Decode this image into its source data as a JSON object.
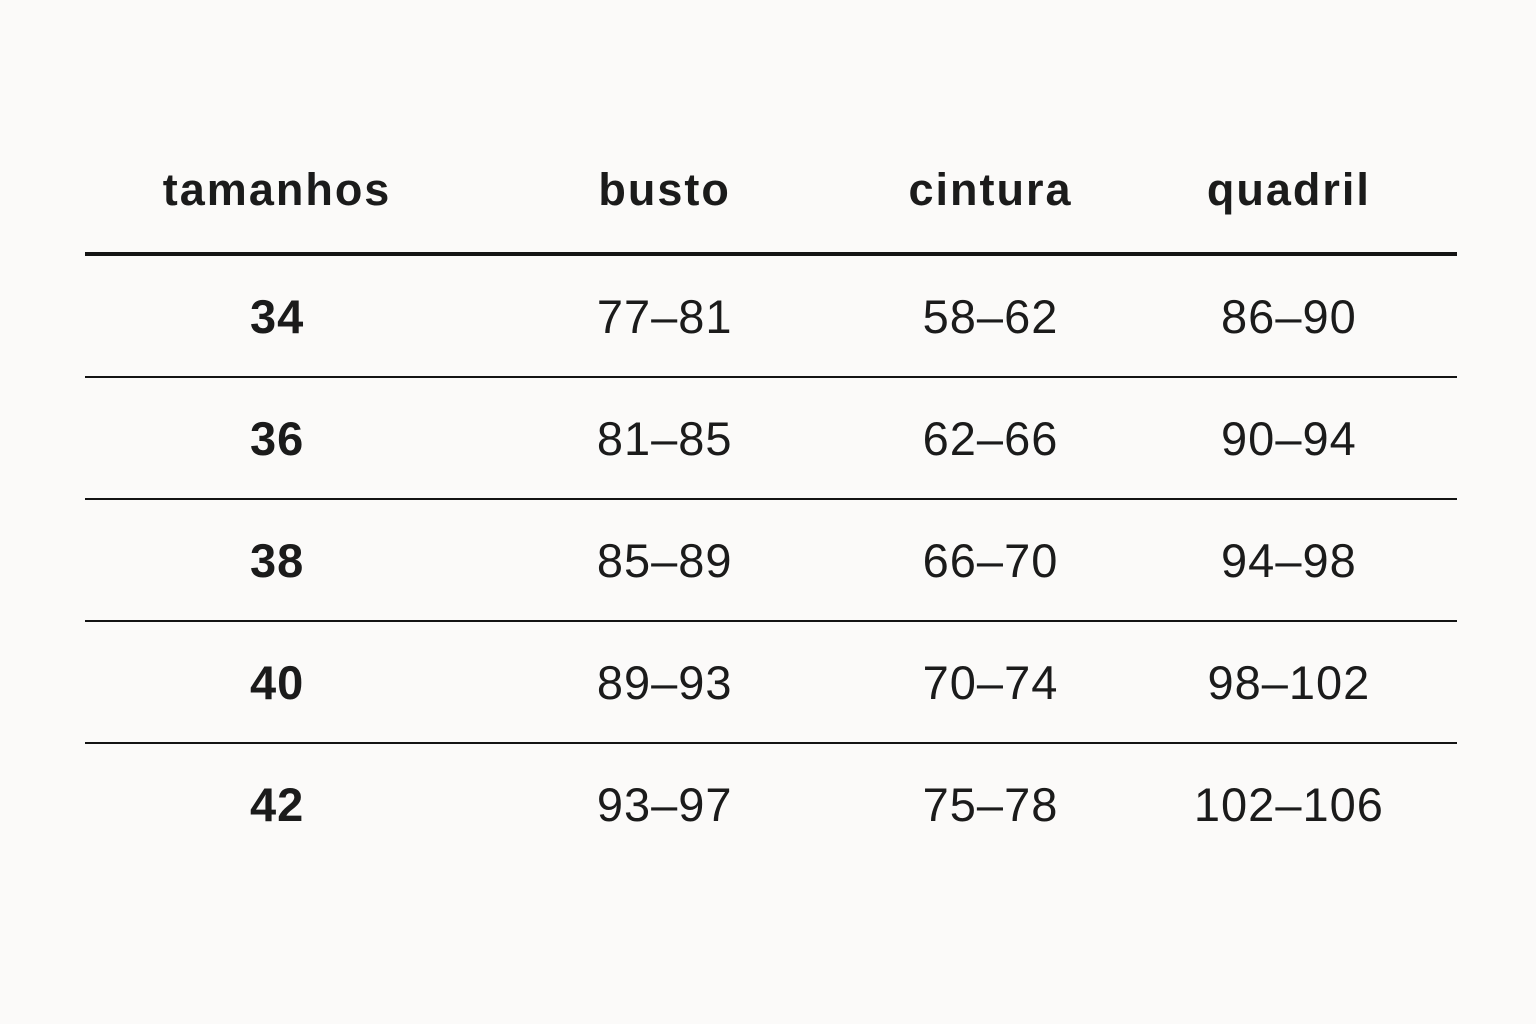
{
  "page": {
    "background_color": "#fbfaf9",
    "text_color": "#1b1b1b",
    "line_color": "#141414"
  },
  "chart_data": {
    "type": "table",
    "title": "",
    "columns": [
      "tamanhos",
      "busto",
      "cintura",
      "quadril"
    ],
    "rows": [
      [
        "34",
        "77–81",
        "58–62",
        "86–90"
      ],
      [
        "36",
        "81–85",
        "62–66",
        "90–94"
      ],
      [
        "38",
        "85–89",
        "66–70",
        "94–98"
      ],
      [
        "40",
        "89–93",
        "70–74",
        "98–102"
      ],
      [
        "42",
        "93–97",
        "75–78",
        "102–106"
      ]
    ]
  }
}
